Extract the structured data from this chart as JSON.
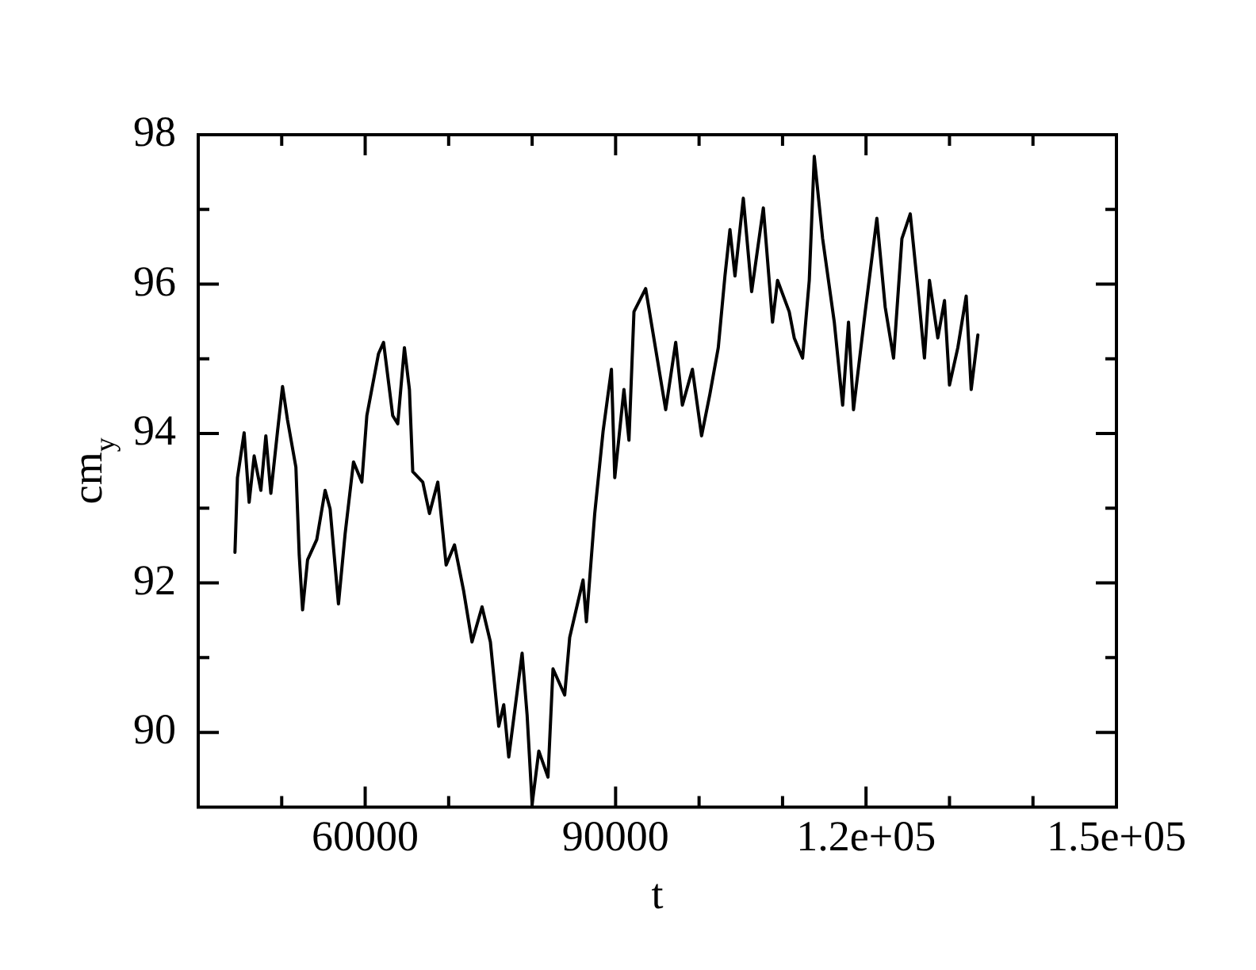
{
  "chart_data": {
    "type": "line",
    "xlabel": "t",
    "ylabel": "cm$_{y}$",
    "xlim": [
      40000,
      150000
    ],
    "ylim": [
      89,
      98
    ],
    "xticks": [
      {
        "value": 50000,
        "label": null
      },
      {
        "value": 60000,
        "label": "60000"
      },
      {
        "value": 70000,
        "label": null
      },
      {
        "value": 80000,
        "label": null
      },
      {
        "value": 90000,
        "label": "90000"
      },
      {
        "value": 100000,
        "label": null
      },
      {
        "value": 110000,
        "label": null
      },
      {
        "value": 120000,
        "label": "1.2e+05"
      },
      {
        "value": 130000,
        "label": null
      },
      {
        "value": 140000,
        "label": null
      },
      {
        "value": 150000,
        "label": "1.5e+05"
      }
    ],
    "yticks": [
      90,
      {
        "value": 91,
        "label": null
      },
      92,
      {
        "value": 93,
        "label": null
      },
      94,
      {
        "value": 95,
        "label": null
      },
      96,
      {
        "value": 97,
        "label": null
      },
      98
    ],
    "grid": false,
    "legend": false,
    "marker": "none",
    "line_style": "solid",
    "series": [
      {
        "color": "#000000",
        "x": [
          44400,
          44700,
          45500,
          46100,
          46700,
          47500,
          48100,
          48700,
          49500,
          50100,
          50700,
          51700,
          52100,
          52500,
          53100,
          54200,
          55200,
          55800,
          56800,
          57600,
          58600,
          59600,
          60200,
          61600,
          62200,
          63300,
          63900,
          64700,
          65300,
          65700,
          66900,
          67700,
          68700,
          69700,
          70700,
          71800,
          72800,
          74000,
          75000,
          76000,
          76600,
          77200,
          78800,
          79400,
          80000,
          80800,
          81900,
          82500,
          83900,
          84500,
          86100,
          86500,
          87500,
          88500,
          89500,
          89900,
          91000,
          91600,
          92200,
          93600,
          96000,
          97200,
          98000,
          99200,
          100300,
          101300,
          102300,
          103100,
          103700,
          104300,
          105300,
          106300,
          107700,
          108800,
          109400,
          110800,
          111400,
          112400,
          113200,
          113800,
          114800,
          116200,
          117200,
          117900,
          118500,
          119900,
          121300,
          122300,
          123300,
          124300,
          125300,
          126300,
          127000,
          127600,
          128600,
          129400,
          130000,
          131000,
          132000,
          132600,
          133400
        ],
        "values": [
          92.41,
          93.41,
          94.01,
          93.08,
          93.7,
          93.24,
          93.97,
          93.2,
          94.03,
          94.63,
          94.18,
          93.55,
          92.37,
          91.64,
          92.31,
          92.58,
          93.24,
          92.99,
          91.72,
          92.66,
          93.62,
          93.35,
          94.24,
          95.07,
          95.22,
          94.24,
          94.13,
          95.15,
          94.59,
          93.49,
          93.35,
          92.93,
          93.35,
          92.24,
          92.51,
          91.89,
          91.21,
          91.68,
          91.21,
          90.08,
          90.37,
          89.67,
          91.06,
          90.23,
          89.04,
          89.75,
          89.4,
          90.85,
          90.5,
          91.27,
          92.04,
          91.48,
          92.93,
          94.03,
          94.86,
          93.41,
          94.59,
          93.91,
          95.63,
          95.94,
          94.32,
          95.22,
          94.38,
          94.86,
          93.97,
          94.53,
          95.15,
          96.11,
          96.73,
          96.11,
          97.15,
          95.9,
          97.02,
          95.49,
          96.05,
          95.63,
          95.28,
          95.01,
          96.05,
          97.71,
          96.61,
          95.49,
          94.38,
          95.49,
          94.32,
          95.63,
          96.88,
          95.69,
          95.01,
          96.61,
          96.94,
          95.84,
          95.01,
          96.05,
          95.28,
          95.78,
          94.65,
          95.15,
          95.84,
          94.59,
          95.32
        ]
      }
    ]
  }
}
